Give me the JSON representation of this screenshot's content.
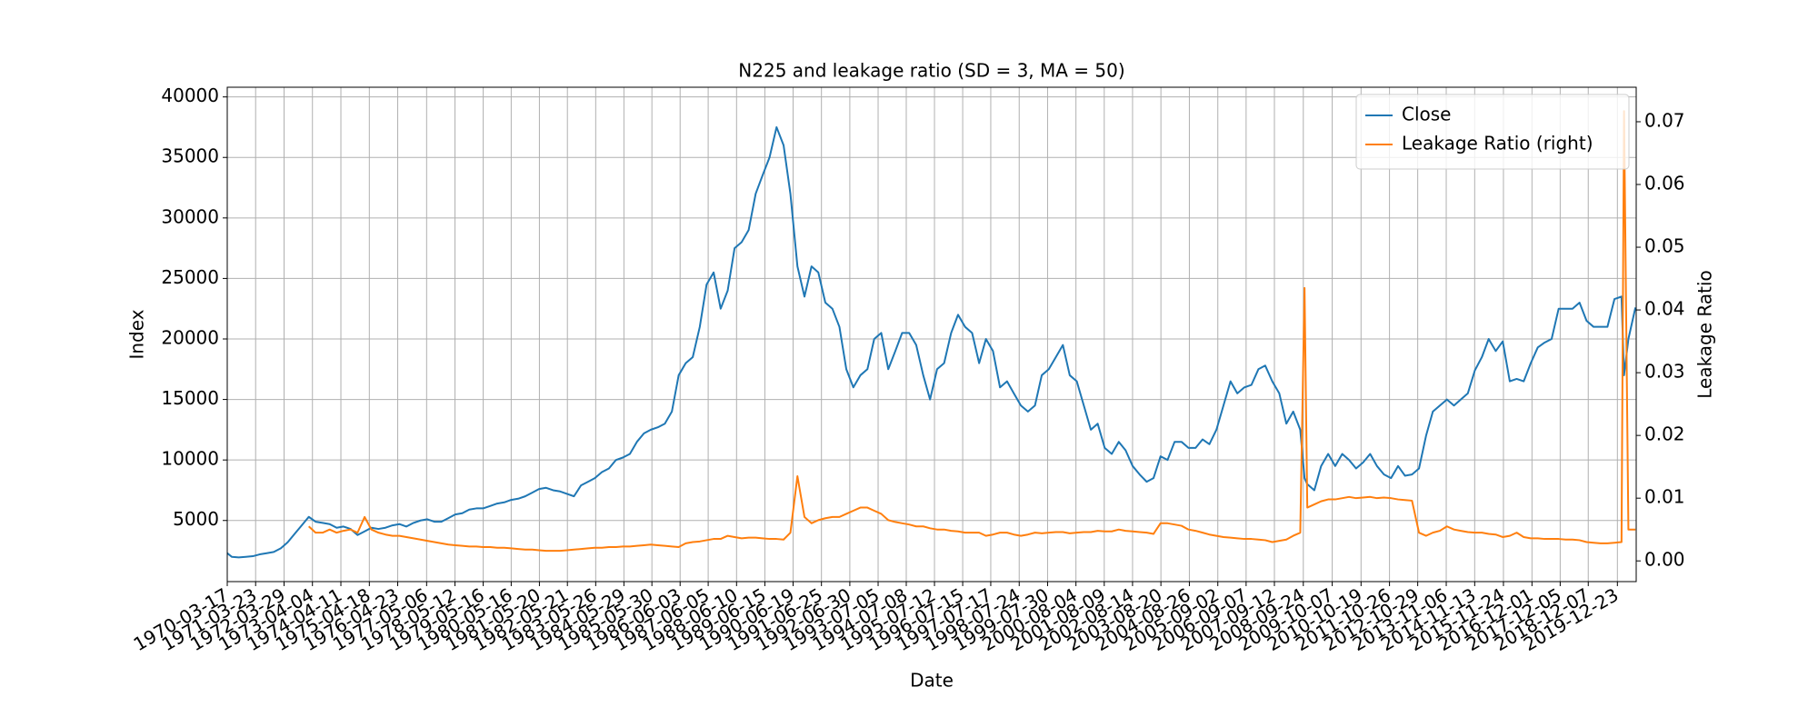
{
  "chart_data": {
    "type": "line",
    "title": "N225 and leakage ratio (SD = 3, MA = 50)",
    "x_label": "Date",
    "y_label": "Index",
    "y2_label": "Leakage Ratio",
    "x": [
      "1970-03-17",
      "1970-05-15",
      "1970-08-15",
      "1970-11-15",
      "1971-02-15",
      "1971-05-15",
      "1971-08-15",
      "1971-11-15",
      "1972-02-15",
      "1972-05-15",
      "1972-08-15",
      "1972-11-15",
      "1973-02-15",
      "1973-05-15",
      "1973-08-15",
      "1973-11-15",
      "1974-02-15",
      "1974-05-15",
      "1974-08-15",
      "1974-11-15",
      "1975-02-15",
      "1975-05-15",
      "1975-08-15",
      "1975-11-15",
      "1976-02-15",
      "1976-05-15",
      "1976-08-15",
      "1976-11-15",
      "1977-02-15",
      "1977-05-15",
      "1977-08-15",
      "1977-11-15",
      "1978-02-15",
      "1978-05-15",
      "1978-08-15",
      "1978-11-15",
      "1979-02-15",
      "1979-05-15",
      "1979-08-15",
      "1979-11-15",
      "1980-02-15",
      "1980-05-15",
      "1980-08-15",
      "1980-11-15",
      "1981-02-15",
      "1981-05-15",
      "1981-08-15",
      "1981-11-15",
      "1982-02-15",
      "1982-05-15",
      "1982-08-15",
      "1982-11-15",
      "1983-02-15",
      "1983-05-15",
      "1983-08-15",
      "1983-11-15",
      "1984-02-15",
      "1984-05-15",
      "1984-08-15",
      "1984-11-15",
      "1985-02-15",
      "1985-05-15",
      "1985-08-15",
      "1985-11-15",
      "1986-02-15",
      "1986-05-15",
      "1986-08-15",
      "1986-11-15",
      "1987-02-15",
      "1987-05-15",
      "1987-08-15",
      "1987-11-15",
      "1988-02-15",
      "1988-05-15",
      "1988-08-15",
      "1988-11-15",
      "1989-02-15",
      "1989-05-15",
      "1989-08-15",
      "1989-11-15",
      "1990-02-15",
      "1990-05-15",
      "1990-08-15",
      "1990-11-15",
      "1991-02-15",
      "1991-05-15",
      "1991-08-15",
      "1991-11-15",
      "1992-02-15",
      "1992-05-15",
      "1992-08-15",
      "1992-11-15",
      "1993-02-15",
      "1993-05-15",
      "1993-08-15",
      "1993-11-15",
      "1994-02-15",
      "1994-05-15",
      "1994-08-15",
      "1994-11-15",
      "1995-02-15",
      "1995-05-15",
      "1995-08-15",
      "1995-11-15",
      "1996-02-15",
      "1996-05-15",
      "1996-08-15",
      "1996-11-15",
      "1997-02-15",
      "1997-05-15",
      "1997-08-15",
      "1997-11-15",
      "1998-02-15",
      "1998-05-15",
      "1998-08-15",
      "1998-11-15",
      "1999-02-15",
      "1999-05-15",
      "1999-08-15",
      "1999-11-15",
      "2000-02-15",
      "2000-05-15",
      "2000-08-15",
      "2000-11-15",
      "2001-02-15",
      "2001-05-15",
      "2001-08-15",
      "2001-11-15",
      "2002-02-15",
      "2002-05-15",
      "2002-08-15",
      "2002-11-15",
      "2003-02-15",
      "2003-05-15",
      "2003-08-15",
      "2003-11-15",
      "2004-02-15",
      "2004-05-15",
      "2004-08-15",
      "2004-11-15",
      "2005-02-15",
      "2005-05-15",
      "2005-08-15",
      "2005-11-15",
      "2006-02-15",
      "2006-05-15",
      "2006-08-15",
      "2006-11-15",
      "2007-02-15",
      "2007-05-15",
      "2007-08-15",
      "2007-11-15",
      "2008-02-15",
      "2008-05-15",
      "2008-08-15",
      "2008-10-10",
      "2008-11-15",
      "2009-02-15",
      "2009-05-15",
      "2009-08-15",
      "2009-11-15",
      "2010-02-15",
      "2010-05-15",
      "2010-08-15",
      "2010-11-15",
      "2011-02-15",
      "2011-05-15",
      "2011-08-15",
      "2011-11-15",
      "2012-02-15",
      "2012-05-15",
      "2012-08-15",
      "2012-11-15",
      "2013-02-15",
      "2013-05-15",
      "2013-08-15",
      "2013-11-15",
      "2014-02-15",
      "2014-05-15",
      "2014-08-15",
      "2014-11-15",
      "2015-02-15",
      "2015-05-15",
      "2015-08-15",
      "2015-11-15",
      "2016-02-15",
      "2016-05-15",
      "2016-08-15",
      "2016-11-15",
      "2017-02-15",
      "2017-05-15",
      "2017-08-15",
      "2017-11-15",
      "2018-02-15",
      "2018-05-15",
      "2018-08-15",
      "2018-11-15",
      "2019-02-15",
      "2019-05-15",
      "2019-08-15",
      "2019-11-15",
      "2020-02-15",
      "2020-03-19",
      "2020-05-15",
      "2020-08-15"
    ],
    "series": [
      {
        "name": "Close",
        "color": "#1f77b4",
        "values": [
          2300,
          2000,
          1950,
          2000,
          2050,
          2200,
          2300,
          2400,
          2700,
          3200,
          3900,
          4600,
          5300,
          4900,
          4800,
          4700,
          4400,
          4500,
          4300,
          3800,
          4100,
          4400,
          4300,
          4400,
          4600,
          4700,
          4500,
          4800,
          5000,
          5100,
          4900,
          4900,
          5200,
          5500,
          5600,
          5900,
          6000,
          6000,
          6200,
          6400,
          6500,
          6700,
          6800,
          7000,
          7300,
          7600,
          7700,
          7500,
          7400,
          7200,
          7000,
          7900,
          8200,
          8500,
          9000,
          9300,
          10000,
          10200,
          10500,
          11500,
          12200,
          12500,
          12700,
          13000,
          14000,
          17000,
          18000,
          18500,
          21000,
          24500,
          25500,
          22500,
          24000,
          27500,
          28000,
          29000,
          32000,
          33500,
          35000,
          37500,
          36000,
          32000,
          26000,
          23500,
          26000,
          25500,
          23000,
          22500,
          21000,
          17500,
          16000,
          17000,
          17500,
          20000,
          20500,
          17500,
          19000,
          20500,
          20500,
          19500,
          17000,
          15000,
          17500,
          18000,
          20500,
          22000,
          21000,
          20500,
          18000,
          20000,
          19000,
          16000,
          16500,
          15500,
          14500,
          14000,
          14500,
          17000,
          17500,
          18500,
          19500,
          17000,
          16500,
          14500,
          12500,
          13000,
          11000,
          10500,
          11500,
          10800,
          9500,
          8800,
          8200,
          8500,
          10300,
          10000,
          11500,
          11500,
          11000,
          11000,
          11700,
          11300,
          12500,
          14500,
          16500,
          15500,
          16000,
          16200,
          17500,
          17800,
          16500,
          15500,
          13000,
          14000,
          12500,
          8500,
          8000,
          7500,
          9500,
          10500,
          9500,
          10500,
          10000,
          9300,
          9800,
          10500,
          9500,
          8800,
          8500,
          9500,
          8700,
          8800,
          9300,
          12000,
          14000,
          14500,
          15000,
          14500,
          15000,
          15500,
          17400,
          18500,
          20000,
          19000,
          19800,
          16500,
          16700,
          16500,
          18000,
          19300,
          19700,
          20000,
          22500,
          22500,
          22500,
          23000,
          21500,
          21000,
          21000,
          21000,
          23300,
          23500,
          17000,
          20000,
          22600
        ]
      },
      {
        "name": "Leakage Ratio (right)",
        "color": "#ff7f0e",
        "axis": "y2",
        "values": [
          null,
          null,
          null,
          null,
          null,
          null,
          null,
          null,
          null,
          null,
          null,
          null,
          0.0055,
          0.0045,
          0.0045,
          0.005,
          0.0045,
          0.0048,
          0.005,
          0.0045,
          0.007,
          0.005,
          0.0045,
          0.0042,
          0.004,
          0.004,
          0.0038,
          0.0036,
          0.0034,
          0.0032,
          0.003,
          0.0028,
          0.0026,
          0.0025,
          0.0024,
          0.0023,
          0.0023,
          0.0022,
          0.0022,
          0.0021,
          0.0021,
          0.002,
          0.0019,
          0.0018,
          0.0018,
          0.0017,
          0.0016,
          0.0016,
          0.0016,
          0.0017,
          0.0018,
          0.0019,
          0.002,
          0.0021,
          0.0021,
          0.0022,
          0.0022,
          0.0023,
          0.0023,
          0.0024,
          0.0025,
          0.0026,
          0.0025,
          0.0024,
          0.0023,
          0.0022,
          0.0028,
          0.003,
          0.0031,
          0.0033,
          0.0035,
          0.0035,
          0.004,
          0.0038,
          0.0036,
          0.0037,
          0.0037,
          0.0036,
          0.0035,
          0.0035,
          0.0034,
          0.0045,
          0.0135,
          0.007,
          0.006,
          0.0065,
          0.0068,
          0.007,
          0.007,
          0.0075,
          0.008,
          0.0085,
          0.0085,
          0.008,
          0.0075,
          0.0065,
          0.0062,
          0.006,
          0.0058,
          0.0055,
          0.0055,
          0.0052,
          0.005,
          0.005,
          0.0048,
          0.0047,
          0.0045,
          0.0045,
          0.0045,
          0.004,
          0.0042,
          0.0045,
          0.0045,
          0.0042,
          0.004,
          0.0042,
          0.0045,
          0.0044,
          0.0045,
          0.0046,
          0.0046,
          0.0044,
          0.0045,
          0.0046,
          0.0046,
          0.0048,
          0.0047,
          0.0047,
          0.005,
          0.0048,
          0.0047,
          0.0046,
          0.0045,
          0.0043,
          0.006,
          0.006,
          0.0058,
          0.0056,
          0.005,
          0.0048,
          0.0045,
          0.0042,
          0.004,
          0.0038,
          0.0037,
          0.0036,
          0.0035,
          0.0035,
          0.0034,
          0.0033,
          0.003,
          0.0032,
          0.0034,
          0.004,
          0.0045,
          0.0435,
          0.0085,
          0.009,
          0.0095,
          0.0098,
          0.0098,
          0.01,
          0.0102,
          0.01,
          0.0101,
          0.0102,
          0.01,
          0.0101,
          0.01,
          0.0098,
          0.0097,
          0.0096,
          0.0045,
          0.004,
          0.0045,
          0.0048,
          0.0055,
          0.005,
          0.0048,
          0.0046,
          0.0045,
          0.0045,
          0.0043,
          0.0042,
          0.0038,
          0.004,
          0.0045,
          0.0038,
          0.0036,
          0.0036,
          0.0035,
          0.0035,
          0.0035,
          0.0034,
          0.0034,
          0.0033,
          0.003,
          0.0029,
          0.0028,
          0.0028,
          0.0029,
          0.003,
          0.0717,
          0.005,
          0.005
        ]
      }
    ],
    "xlim": [
      "1970-03-17",
      "2020-08-25"
    ],
    "xticks": [
      "1970-03-17",
      "1971-03-23",
      "1972-03-29",
      "1973-04-04",
      "1974-04-11",
      "1975-04-18",
      "1976-04-23",
      "1977-05-06",
      "1978-05-12",
      "1979-05-16",
      "1980-05-16",
      "1981-05-20",
      "1982-05-21",
      "1983-05-26",
      "1984-05-29",
      "1985-05-30",
      "1986-06-03",
      "1987-06-05",
      "1988-06-10",
      "1989-06-15",
      "1990-06-19",
      "1991-06-25",
      "1992-06-30",
      "1993-07-05",
      "1994-07-08",
      "1995-07-12",
      "1996-07-15",
      "1997-07-17",
      "1998-07-24",
      "1999-07-30",
      "2000-08-04",
      "2001-08-09",
      "2002-08-14",
      "2003-08-20",
      "2004-08-26",
      "2005-09-02",
      "2006-09-07",
      "2007-09-12",
      "2008-09-24",
      "2009-10-07",
      "2010-10-19",
      "2011-10-26",
      "2012-10-29",
      "2013-11-06",
      "2014-11-13",
      "2015-11-24",
      "2016-12-01",
      "2017-12-05",
      "2018-12-07",
      "2019-12-23"
    ],
    "ylim": [
      -50,
      40800
    ],
    "yticks": [
      5000,
      10000,
      15000,
      20000,
      25000,
      30000,
      35000,
      40000
    ],
    "y2lim": [
      -0.0033,
      0.0755
    ],
    "y2ticks": [
      {
        "value": 0,
        "label": "0.00"
      },
      {
        "value": 0.01,
        "label": "0.01"
      },
      {
        "value": 0.02,
        "label": "0.02"
      },
      {
        "value": 0.03,
        "label": "0.03"
      },
      {
        "value": 0.04,
        "label": "0.04"
      },
      {
        "value": 0.05,
        "label": "0.05"
      },
      {
        "value": 0.06,
        "label": "0.06"
      },
      {
        "value": 0.07,
        "label": "0.07"
      }
    ],
    "grid": true,
    "legend": "upper right"
  }
}
